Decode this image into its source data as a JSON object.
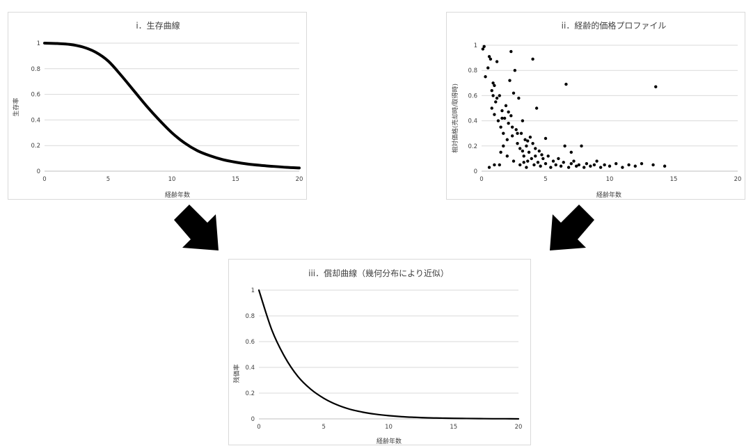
{
  "colors": {
    "line": "#000000",
    "grid": "#d9d9d9",
    "text": "#404040",
    "arrow": "#000000"
  },
  "arrows": [
    {
      "name": "arrow-down-right-icon",
      "direction": "down-right"
    },
    {
      "name": "arrow-down-left-icon",
      "direction": "down-left"
    }
  ],
  "chart_data": [
    {
      "id": "survival",
      "type": "line",
      "title": "i．生存曲線",
      "xlabel": "経齢年数",
      "ylabel": "生存率",
      "xlim": [
        0,
        20
      ],
      "ylim": [
        0,
        1
      ],
      "xticks": [
        "0",
        "5",
        "10",
        "15",
        "20"
      ],
      "yticks": [
        "0",
        "0.2",
        "0.4",
        "0.6",
        "0.8",
        "1"
      ],
      "grid": true,
      "series": [
        {
          "x": [
            0,
            1,
            2,
            3,
            4,
            5,
            6,
            7,
            8,
            9,
            10,
            11,
            12,
            13,
            14,
            15,
            16,
            17,
            18,
            19,
            20
          ],
          "y": [
            1.0,
            0.997,
            0.99,
            0.97,
            0.93,
            0.86,
            0.75,
            0.63,
            0.51,
            0.4,
            0.3,
            0.22,
            0.16,
            0.12,
            0.09,
            0.07,
            0.055,
            0.045,
            0.037,
            0.03,
            0.025
          ]
        }
      ]
    },
    {
      "id": "price-profile",
      "type": "scatter",
      "title": "ii．経齢的価格プロファイル",
      "xlabel": "経齢年数",
      "ylabel": "相対価格(売却時/取得時)",
      "xlim": [
        0,
        20
      ],
      "ylim": [
        0,
        1
      ],
      "xticks": [
        "0",
        "5",
        "10",
        "15",
        "20"
      ],
      "yticks": [
        "0",
        "0.2",
        "0.4",
        "0.6",
        "0.8",
        "1"
      ],
      "grid": true,
      "points": [
        [
          0.1,
          0.97
        ],
        [
          0.2,
          0.99
        ],
        [
          0.3,
          0.75
        ],
        [
          0.5,
          0.82
        ],
        [
          0.6,
          0.91
        ],
        [
          0.7,
          0.89
        ],
        [
          0.8,
          0.64
        ],
        [
          0.9,
          0.7
        ],
        [
          1.0,
          0.68
        ],
        [
          1.2,
          0.87
        ],
        [
          0.8,
          0.5
        ],
        [
          1.0,
          0.45
        ],
        [
          1.1,
          0.55
        ],
        [
          1.3,
          0.4
        ],
        [
          1.4,
          0.6
        ],
        [
          1.5,
          0.35
        ],
        [
          1.6,
          0.48
        ],
        [
          1.7,
          0.3
        ],
        [
          1.8,
          0.42
        ],
        [
          1.9,
          0.52
        ],
        [
          2.0,
          0.25
        ],
        [
          2.1,
          0.38
        ],
        [
          2.2,
          0.72
        ],
        [
          2.3,
          0.44
        ],
        [
          2.4,
          0.28
        ],
        [
          2.5,
          0.62
        ],
        [
          2.6,
          0.8
        ],
        [
          2.7,
          0.33
        ],
        [
          2.8,
          0.22
        ],
        [
          2.9,
          0.58
        ],
        [
          3.0,
          0.18
        ],
        [
          3.1,
          0.3
        ],
        [
          3.2,
          0.4
        ],
        [
          3.3,
          0.12
        ],
        [
          3.4,
          0.25
        ],
        [
          3.5,
          0.2
        ],
        [
          3.6,
          0.08
        ],
        [
          3.7,
          0.15
        ],
        [
          3.8,
          0.27
        ],
        [
          3.9,
          0.1
        ],
        [
          4.0,
          0.22
        ],
        [
          4.1,
          0.05
        ],
        [
          4.2,
          0.12
        ],
        [
          4.3,
          0.5
        ],
        [
          4.4,
          0.07
        ],
        [
          4.5,
          0.16
        ],
        [
          4.6,
          0.04
        ],
        [
          4.8,
          0.1
        ],
        [
          5.0,
          0.06
        ],
        [
          5.2,
          0.12
        ],
        [
          5.4,
          0.03
        ],
        [
          5.6,
          0.08
        ],
        [
          5.8,
          0.05
        ],
        [
          6.0,
          0.1
        ],
        [
          6.2,
          0.04
        ],
        [
          6.4,
          0.07
        ],
        [
          6.6,
          0.69
        ],
        [
          6.8,
          0.03
        ],
        [
          7.0,
          0.06
        ],
        [
          7.2,
          0.08
        ],
        [
          7.4,
          0.04
        ],
        [
          7.6,
          0.05
        ],
        [
          7.8,
          0.2
        ],
        [
          8.0,
          0.03
        ],
        [
          8.2,
          0.06
        ],
        [
          8.5,
          0.04
        ],
        [
          8.8,
          0.05
        ],
        [
          9.0,
          0.08
        ],
        [
          9.3,
          0.03
        ],
        [
          9.6,
          0.05
        ],
        [
          10.0,
          0.04
        ],
        [
          10.5,
          0.06
        ],
        [
          11.0,
          0.03
        ],
        [
          11.5,
          0.05
        ],
        [
          12.0,
          0.04
        ],
        [
          12.5,
          0.06
        ],
        [
          13.4,
          0.05
        ],
        [
          13.6,
          0.67
        ],
        [
          14.3,
          0.04
        ],
        [
          0.6,
          0.03
        ],
        [
          1.0,
          0.05
        ],
        [
          1.5,
          0.15
        ],
        [
          2.0,
          0.12
        ],
        [
          2.5,
          0.08
        ],
        [
          3.0,
          0.05
        ],
        [
          3.5,
          0.03
        ],
        [
          4.0,
          0.89
        ],
        [
          2.3,
          0.95
        ],
        [
          1.7,
          0.2
        ],
        [
          0.9,
          0.6
        ],
        [
          1.2,
          0.58
        ],
        [
          1.6,
          0.42
        ],
        [
          2.1,
          0.47
        ],
        [
          2.4,
          0.35
        ],
        [
          2.8,
          0.3
        ],
        [
          3.2,
          0.16
        ],
        [
          3.6,
          0.24
        ],
        [
          4.2,
          0.18
        ],
        [
          5.0,
          0.26
        ],
        [
          1.4,
          0.05
        ],
        [
          6.5,
          0.2
        ],
        [
          7.0,
          0.15
        ],
        [
          4.7,
          0.13
        ],
        [
          3.3,
          0.07
        ]
      ]
    },
    {
      "id": "depreciation",
      "type": "line",
      "title": "iii．償却曲線（幾何分布により近似）",
      "xlabel": "経齢年数",
      "ylabel": "残価率",
      "xlim": [
        0,
        20
      ],
      "ylim": [
        0,
        1
      ],
      "xticks": [
        "0",
        "5",
        "10",
        "15",
        "20"
      ],
      "yticks": [
        "0",
        "0.2",
        "0.4",
        "0.6",
        "0.8",
        "1"
      ],
      "grid": true,
      "series": [
        {
          "x": [
            0,
            1,
            2,
            3,
            4,
            5,
            6,
            7,
            8,
            9,
            10,
            11,
            12,
            13,
            14,
            15,
            16,
            17,
            18,
            19,
            20
          ],
          "y": [
            1.0,
            0.69,
            0.48,
            0.33,
            0.23,
            0.16,
            0.11,
            0.075,
            0.052,
            0.036,
            0.025,
            0.017,
            0.012,
            0.008,
            0.006,
            0.004,
            0.003,
            0.002,
            0.001,
            0.001,
            0.0
          ]
        }
      ]
    }
  ]
}
